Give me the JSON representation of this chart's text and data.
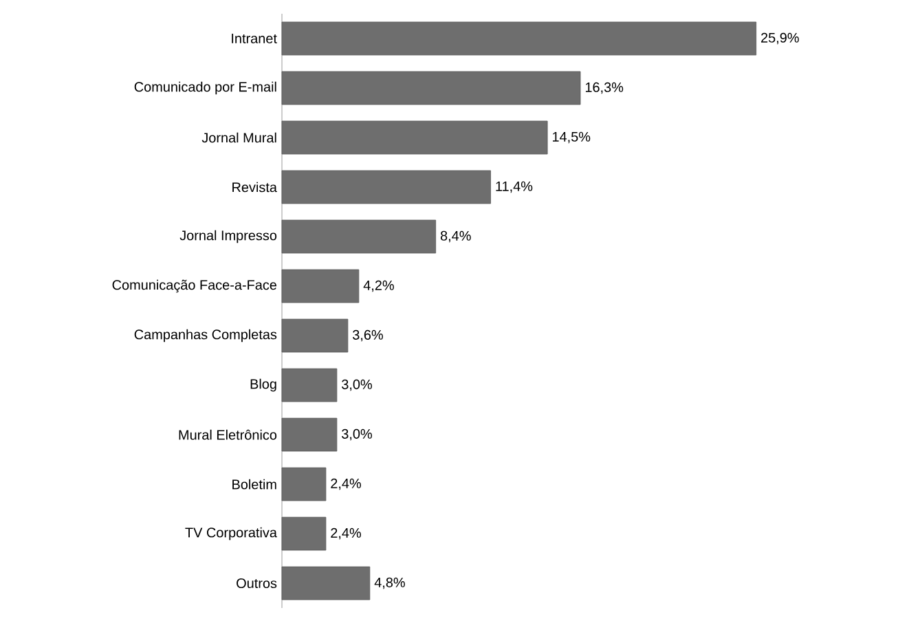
{
  "chart_data": {
    "type": "bar",
    "orientation": "horizontal",
    "color": "#6e6e6e",
    "categories": [
      "Intranet",
      "Comunicado por E-mail",
      "Jornal Mural",
      "Revista",
      "Jornal Impresso",
      "Comunicação Face-a-Face",
      "Campanhas Completas",
      "Blog",
      "Mural Eletrônico",
      "Boletim",
      "TV Corporativa",
      "Outros"
    ],
    "values": [
      25.9,
      16.3,
      14.5,
      11.4,
      8.4,
      4.2,
      3.6,
      3.0,
      3.0,
      2.4,
      2.4,
      4.8
    ],
    "value_labels": [
      "25,9%",
      "16,3%",
      "14,5%",
      "11,4%",
      "8,4%",
      "4,2%",
      "3,6%",
      "3,0%",
      "3,0%",
      "2,4%",
      "2,4%",
      "4,8%"
    ]
  }
}
